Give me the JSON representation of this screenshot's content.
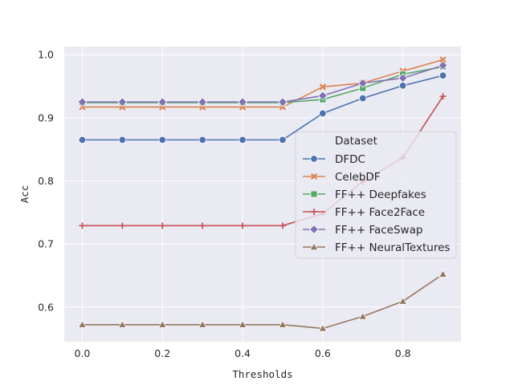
{
  "chart_data": {
    "type": "line",
    "title": "",
    "xlabel": "Thresholds",
    "ylabel": "Acc",
    "x": [
      0.0,
      0.1,
      0.2,
      0.3,
      0.4,
      0.5,
      0.6,
      0.7,
      0.8,
      0.9
    ],
    "xlim": [
      -0.045,
      0.945
    ],
    "ylim": [
      0.545,
      1.013
    ],
    "x_ticks": [
      "0.0",
      "0.2",
      "0.4",
      "0.6",
      "0.8"
    ],
    "y_ticks": [
      "0.6",
      "0.7",
      "0.8",
      "0.9",
      "1.0"
    ],
    "grid": true,
    "legend_title": "Dataset",
    "legend_position": "center-right",
    "series": [
      {
        "name": "DFDC",
        "color": "#4c72b0",
        "marker": "circle",
        "values": [
          0.865,
          0.865,
          0.865,
          0.865,
          0.865,
          0.865,
          0.907,
          0.931,
          0.951,
          0.967
        ]
      },
      {
        "name": "CelebDF",
        "color": "#dd8452",
        "marker": "x",
        "values": [
          0.917,
          0.917,
          0.917,
          0.917,
          0.917,
          0.917,
          0.949,
          0.955,
          0.974,
          0.992
        ]
      },
      {
        "name": "FF++ Deepfakes",
        "color": "#55a868",
        "marker": "square",
        "values": [
          0.924,
          0.924,
          0.924,
          0.924,
          0.924,
          0.924,
          0.929,
          0.947,
          0.969,
          0.981
        ]
      },
      {
        "name": "FF++ Face2Face",
        "color": "#c44e52",
        "marker": "plus",
        "values": [
          0.729,
          0.729,
          0.729,
          0.729,
          0.729,
          0.729,
          0.748,
          0.799,
          0.837,
          0.934
        ]
      },
      {
        "name": "FF++ FaceSwap",
        "color": "#8172b3",
        "marker": "diamond",
        "values": [
          0.925,
          0.925,
          0.925,
          0.925,
          0.925,
          0.925,
          0.935,
          0.955,
          0.963,
          0.983
        ]
      },
      {
        "name": "FF++ NeuralTextures",
        "color": "#937860",
        "marker": "triangle",
        "values": [
          0.572,
          0.572,
          0.572,
          0.572,
          0.572,
          0.572,
          0.566,
          0.585,
          0.609,
          0.652
        ]
      }
    ]
  }
}
